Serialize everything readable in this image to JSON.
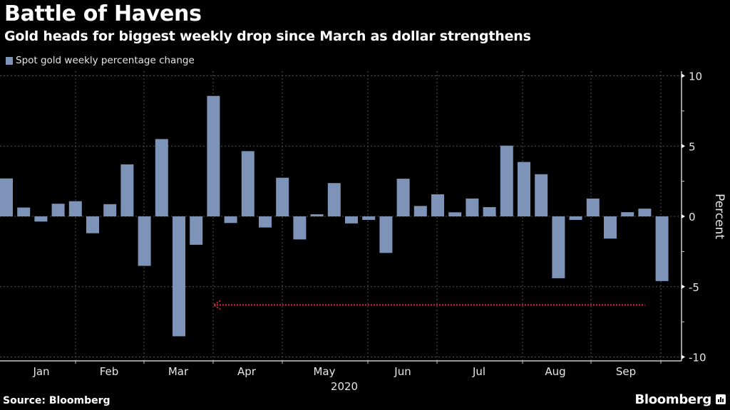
{
  "header": {
    "title": "Battle of Havens",
    "subtitle": "Gold heads for biggest weekly drop since March as dollar strengthens"
  },
  "footer": {
    "source": "Source: Bloomberg",
    "brand": "Bloomberg"
  },
  "colors": {
    "bar": "#7d93b8",
    "background": "#000000",
    "annotation": "#e0263a",
    "grid": "#555555"
  },
  "chart_data": {
    "type": "bar",
    "title": "Battle of Havens",
    "subtitle": "Gold heads for biggest weekly drop since March as dollar strengthens",
    "legend": [
      "Spot gold weekly percentage change"
    ],
    "legend_position": "top-left",
    "xlabel": "2020",
    "ylabel": "Percent",
    "y_axis_side": "right",
    "ylim": [
      -10,
      10
    ],
    "yticks": [
      10,
      5,
      0,
      -5,
      -10
    ],
    "xtick_labels": [
      "Jan",
      "Feb",
      "Mar",
      "Apr",
      "May",
      "Jun",
      "Jul",
      "Aug",
      "Sep"
    ],
    "grid": true,
    "series": [
      {
        "name": "Spot gold weekly percentage change",
        "values": [
          2.7,
          0.63,
          -0.37,
          0.9,
          1.08,
          -1.2,
          0.87,
          3.7,
          -3.52,
          5.5,
          -8.53,
          -2.02,
          8.57,
          -0.47,
          4.64,
          -0.79,
          2.75,
          -1.64,
          0.15,
          2.37,
          -0.5,
          -0.25,
          -2.6,
          2.68,
          0.74,
          1.57,
          0.29,
          1.27,
          0.66,
          5.03,
          3.87,
          3.0,
          -4.4,
          -0.25,
          1.27,
          -1.58,
          0.3,
          0.55,
          -4.6
        ]
      }
    ],
    "annotations": [
      {
        "type": "arrow",
        "y": -6.3,
        "from_bar_index": 38,
        "to_bar_index": 12,
        "description": "dotted red arrow pointing back to March week"
      }
    ]
  }
}
